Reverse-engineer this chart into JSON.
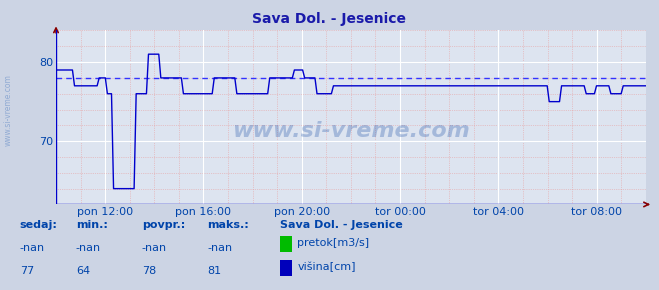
{
  "title": "Sava Dol. - Jesenice",
  "title_color": "#1a1aaa",
  "bg_color": "#ccd4e4",
  "plot_bg_color": "#dde4f0",
  "grid_major_color": "#ffffff",
  "grid_minor_color": "#e8a0a0",
  "line_color": "#0000cc",
  "avg_line_color": "#3333ff",
  "axis_label_color": "#0044aa",
  "tick_label_color": "#0044aa",
  "x_tick_labels": [
    "pon 12:00",
    "pon 16:00",
    "pon 20:00",
    "tor 00:00",
    "tor 04:00",
    "tor 08:00"
  ],
  "x_tick_positions": [
    0.0833,
    0.25,
    0.4167,
    0.5833,
    0.75,
    0.9167
  ],
  "ylim": [
    62.0,
    84.0
  ],
  "yticks": [
    70,
    80
  ],
  "avg_value": 78,
  "legend_station": "Sava Dol. - Jesenice",
  "legend_pretok_color": "#00bb00",
  "legend_visina_color": "#0000bb",
  "footer_labels": [
    "sedaj:",
    "min.:",
    "povpr.:",
    "maks.:"
  ],
  "footer_row1": [
    "-nan",
    "-nan",
    "-nan",
    "-nan"
  ],
  "footer_row2": [
    "77",
    "64",
    "78",
    "81"
  ],
  "num_points": 288,
  "watermark": "www.si-vreme.com",
  "side_watermark": "www.si-vreme.com",
  "arrow_color": "#880000"
}
